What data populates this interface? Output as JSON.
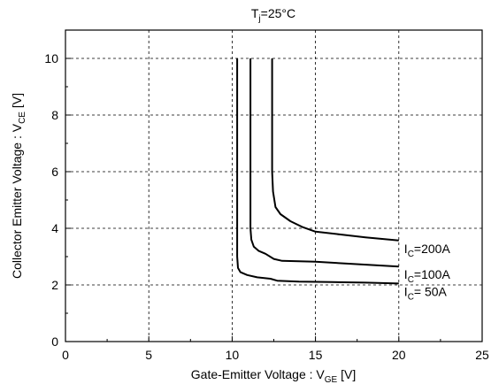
{
  "chart_data": {
    "type": "line",
    "title": {
      "main": "T",
      "sub": "j",
      "rest": "=25°C"
    },
    "xlabel": {
      "main": "Gate-Emitter Voltage  :  V",
      "sub": "GE",
      "rest": "  [V]"
    },
    "ylabel": {
      "main": "Collector Emitter Voltage  :  V",
      "sub": "CE",
      "rest": "  [V]"
    },
    "xlim": [
      0,
      25
    ],
    "ylim": [
      0,
      11
    ],
    "xticks": [
      "0",
      "5",
      "10",
      "15",
      "20",
      "25"
    ],
    "xtick_values": [
      0,
      5,
      10,
      15,
      20,
      25
    ],
    "yticks": [
      "0",
      "2",
      "4",
      "6",
      "8",
      "10"
    ],
    "ytick_values": [
      0,
      2,
      4,
      6,
      8,
      10
    ],
    "grid": true,
    "grid_style": "dashed",
    "series": [
      {
        "name": {
          "main": "I",
          "sub": "C",
          "rest": "=200A"
        },
        "x": [
          12.4,
          12.4,
          12.45,
          12.6,
          12.9,
          13.5,
          14.2,
          15.0,
          16.5,
          18.0,
          20.0
        ],
        "y": [
          10.0,
          6.0,
          5.3,
          4.75,
          4.5,
          4.25,
          4.05,
          3.88,
          3.78,
          3.68,
          3.57
        ]
      },
      {
        "name": {
          "main": "I",
          "sub": "C",
          "rest": "=100A"
        },
        "x": [
          11.1,
          11.1,
          11.15,
          11.3,
          11.6,
          12.0,
          12.5,
          13.0,
          15.0,
          17.0,
          20.0
        ],
        "y": [
          10.0,
          4.0,
          3.6,
          3.35,
          3.2,
          3.1,
          2.92,
          2.85,
          2.82,
          2.75,
          2.65
        ]
      },
      {
        "name": {
          "main": "I",
          "sub": "C",
          "rest": "= 50A"
        },
        "x": [
          10.3,
          10.3,
          10.35,
          10.5,
          10.9,
          11.5,
          12.3,
          12.7,
          14.0,
          16.0,
          18.0,
          20.0
        ],
        "y": [
          10.0,
          3.0,
          2.6,
          2.45,
          2.35,
          2.27,
          2.22,
          2.15,
          2.12,
          2.1,
          2.08,
          2.05
        ]
      }
    ]
  }
}
